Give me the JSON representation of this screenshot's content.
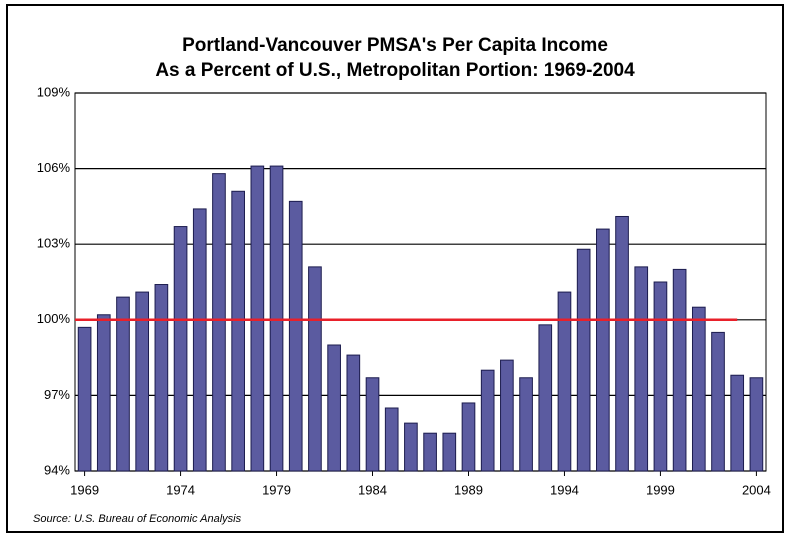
{
  "chart_data": {
    "type": "bar",
    "title": [
      "Portland-Vancouver PMSA's Per Capita Income",
      "As a Percent of U.S., Metropolitan Portion: 1969-2004"
    ],
    "source": "Source: U.S. Bureau of Economic Analysis",
    "categories": [
      "1969",
      null,
      null,
      null,
      null,
      "1974",
      null,
      null,
      null,
      null,
      "1979",
      null,
      null,
      null,
      null,
      "1984",
      null,
      null,
      null,
      null,
      "1989",
      null,
      null,
      null,
      null,
      "1994",
      null,
      null,
      null,
      null,
      "1999",
      null,
      null,
      null,
      null,
      "2004"
    ],
    "values": [
      99.7,
      100.2,
      100.9,
      101.1,
      101.4,
      103.7,
      104.4,
      105.8,
      105.1,
      106.1,
      106.1,
      104.7,
      102.1,
      99.0,
      98.6,
      97.7,
      96.5,
      95.9,
      95.5,
      95.5,
      96.7,
      98.0,
      98.4,
      97.7,
      99.8,
      101.1,
      102.8,
      103.6,
      104.1,
      102.1,
      101.5,
      102.0,
      100.5,
      99.5,
      97.8,
      97.7
    ],
    "color": "#5b5ba0",
    "reference_line": 100,
    "reference_color": "#e8202a",
    "ylim": [
      94,
      109
    ],
    "yticks": [
      {
        "value": 94,
        "label": "94%"
      },
      {
        "value": 97,
        "label": "97%"
      },
      {
        "value": 100,
        "label": "100%"
      },
      {
        "value": 103,
        "label": "103%"
      },
      {
        "value": 106,
        "label": "106%"
      },
      {
        "value": 109,
        "label": "109%"
      }
    ],
    "grid": true
  }
}
